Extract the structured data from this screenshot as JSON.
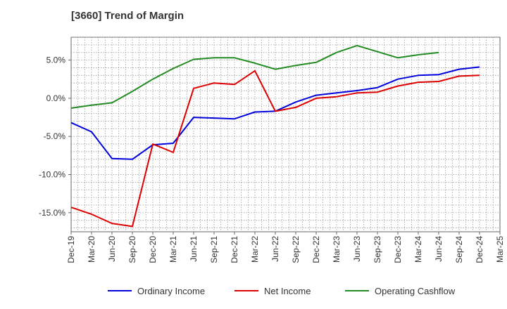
{
  "chart_data": {
    "type": "line",
    "title": "[3660]  Trend of Margin",
    "xlabel": "",
    "ylabel": "",
    "ylim": [
      -17.5,
      8.0
    ],
    "y_ticks": [
      5,
      0,
      -5,
      -10,
      -15
    ],
    "y_tick_labels": [
      "5.0%",
      "0.0%",
      "-5.0%",
      "-10.0%",
      "-15.0%"
    ],
    "categories": [
      "Dec-19",
      "Mar-20",
      "Jun-20",
      "Sep-20",
      "Dec-20",
      "Mar-21",
      "Jun-21",
      "Sep-21",
      "Dec-21",
      "Mar-22",
      "Jun-22",
      "Sep-22",
      "Dec-22",
      "Mar-23",
      "Jun-23",
      "Sep-23",
      "Dec-23",
      "Mar-24",
      "Jun-24",
      "Sep-24",
      "Dec-24",
      "Mar-25"
    ],
    "grid": true,
    "legend_position": "bottom",
    "series": [
      {
        "name": "Ordinary Income",
        "color": "#0000dd",
        "values": [
          -3.2,
          -4.4,
          -7.9,
          -8.0,
          -6.1,
          -5.9,
          -2.5,
          -2.6,
          -2.7,
          -1.8,
          -1.7,
          -0.5,
          0.4,
          0.7,
          1.0,
          1.4,
          2.5,
          3.0,
          3.1,
          3.8,
          4.1,
          null
        ]
      },
      {
        "name": "Net Income",
        "color": "#dd0000",
        "values": [
          -14.3,
          -15.2,
          -16.4,
          -16.8,
          -6.0,
          -7.1,
          1.3,
          2.0,
          1.8,
          3.6,
          -1.7,
          -1.2,
          0.0,
          0.2,
          0.7,
          0.8,
          1.6,
          2.1,
          2.2,
          2.9,
          3.0,
          null
        ]
      },
      {
        "name": "Operating Cashflow",
        "color": "#228b22",
        "values": [
          -1.3,
          -0.9,
          -0.6,
          0.9,
          2.5,
          3.9,
          5.1,
          5.3,
          5.3,
          4.6,
          3.8,
          4.3,
          4.7,
          6.0,
          6.9,
          6.1,
          5.3,
          5.7,
          6.0,
          null,
          null,
          null
        ]
      }
    ]
  }
}
